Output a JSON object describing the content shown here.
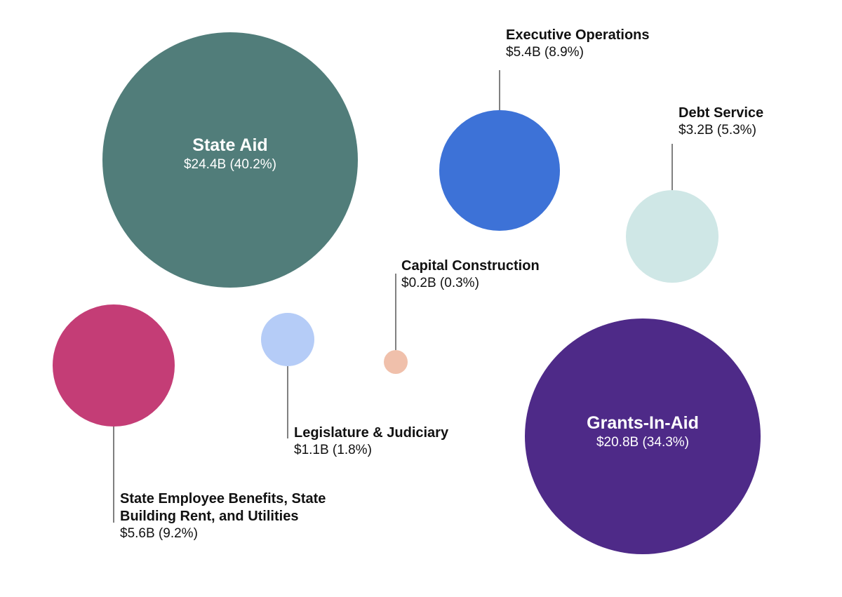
{
  "chart_data": {
    "type": "bubble",
    "title": "",
    "series": [
      {
        "name": "State Aid",
        "value_label": "$24.4B (40.2%)",
        "value_billions": 24.4,
        "percent": 40.2,
        "color": "#517d7a"
      },
      {
        "name": "Executive Operations",
        "value_label": "$5.4B (8.9%)",
        "value_billions": 5.4,
        "percent": 8.9,
        "color": "#3d72d7"
      },
      {
        "name": "Debt Service",
        "value_label": "$3.2B (5.3%)",
        "value_billions": 3.2,
        "percent": 5.3,
        "color": "#cfe7e6"
      },
      {
        "name": "Capital Construction",
        "value_label": "$0.2B (0.3%)",
        "value_billions": 0.2,
        "percent": 0.3,
        "color": "#f0c0ab"
      },
      {
        "name": "Legislature & Judiciary",
        "value_label": "$1.1B (1.8%)",
        "value_billions": 1.1,
        "percent": 1.8,
        "color": "#b5ccf7"
      },
      {
        "name": "State Employee Benefits, State Building Rent, and Utilities",
        "value_label": "$5.6B (9.2%)",
        "value_billions": 5.6,
        "percent": 9.2,
        "color": "#c43d76"
      },
      {
        "name": "Grants-In-Aid",
        "value_label": "$20.8B (34.3%)",
        "value_billions": 20.8,
        "percent": 34.3,
        "color": "#4e2a88"
      }
    ]
  }
}
